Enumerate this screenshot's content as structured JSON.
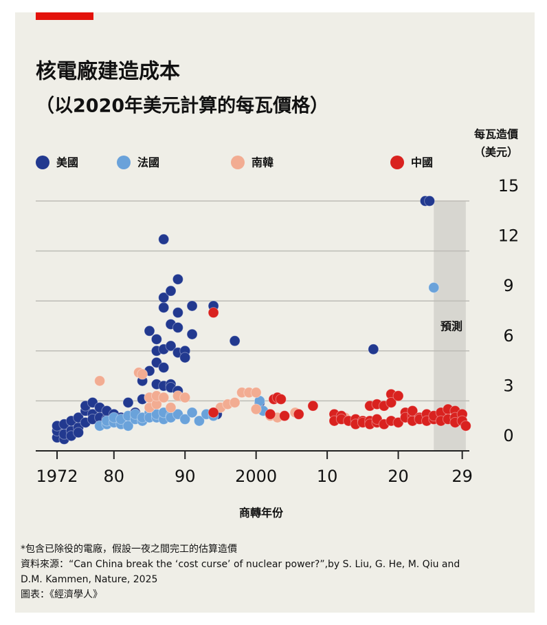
{
  "chart_data": {
    "type": "scatter",
    "title": "核電廠建造成本",
    "subtitle": "（以2020年美元計算的每瓦價格）",
    "y_axis_title": [
      "每瓦造價",
      "（美元）"
    ],
    "x_axis_title": "商轉年份",
    "shade": {
      "label": "預測",
      "x": [
        2025,
        2029.5
      ]
    },
    "xlim": [
      1969,
      2030
    ],
    "xticks": [
      {
        "value": 1972,
        "label": "1972"
      },
      {
        "value": 1980,
        "label": "80"
      },
      {
        "value": 1990,
        "label": "90"
      },
      2000,
      {
        "value": 2010,
        "label": "10"
      },
      {
        "value": 2020,
        "label": "20"
      },
      {
        "value": 2029,
        "label": "29"
      }
    ],
    "ylim": [
      0,
      15
    ],
    "yticks": [
      0,
      3,
      6,
      9,
      12,
      15
    ],
    "grid": true,
    "series": [
      {
        "name": "美國",
        "color": "#22398f",
        "x": [
          1972,
          1972,
          1972,
          1973,
          1973,
          1973,
          1974,
          1974,
          1974,
          1975,
          1975,
          1975,
          1976,
          1976,
          1976,
          1977,
          1977,
          1977,
          1978,
          1978,
          1979,
          1979,
          1980,
          1980,
          1981,
          1982,
          1982,
          1983,
          1984,
          1984,
          1985,
          1985,
          1985,
          1986,
          1986,
          1986,
          1986,
          1987,
          1987,
          1987,
          1987,
          1987,
          1987,
          1988,
          1988,
          1988,
          1988,
          1988,
          1989,
          1989,
          1989,
          1989,
          1989,
          1990,
          1990,
          1991,
          1991,
          1994,
          1994.5,
          1997,
          2000.5,
          2016.5,
          2023.8,
          2024.4
        ],
        "y": [
          0.8,
          1.2,
          1.5,
          0.7,
          1.0,
          1.6,
          1.2,
          1.8,
          0.9,
          1.4,
          2.0,
          1.1,
          2.4,
          1.7,
          2.7,
          2.9,
          2.2,
          1.9,
          2.6,
          2.0,
          1.9,
          2.4,
          1.8,
          2.2,
          2.0,
          2.9,
          2.1,
          2.3,
          3.1,
          4.2,
          4.8,
          3.2,
          7.2,
          5.3,
          4.0,
          6.0,
          6.7,
          12.7,
          8.6,
          5.0,
          3.9,
          9.2,
          6.1,
          9.6,
          7.6,
          6.3,
          4.0,
          3.8,
          10.3,
          8.3,
          7.4,
          5.9,
          3.6,
          6.0,
          5.6,
          8.7,
          7.0,
          8.7,
          2.2,
          6.6,
          2.9,
          6.1,
          15,
          15
        ]
      },
      {
        "name": "法國",
        "color": "#6aa2da",
        "x": [
          1978,
          1979,
          1979,
          1980,
          1980,
          1981,
          1981,
          1982,
          1982,
          1983,
          1983,
          1984,
          1984,
          1985,
          1985,
          1986,
          1986,
          1987,
          1987,
          1988,
          1988,
          1989,
          1990,
          1991,
          1992,
          1993,
          1994,
          2000.5,
          2001,
          2025
        ],
        "y": [
          1.5,
          1.6,
          1.8,
          1.7,
          2.0,
          1.6,
          1.9,
          2.1,
          1.5,
          1.9,
          2.2,
          1.8,
          2.0,
          2.3,
          2.0,
          2.0,
          2.2,
          1.9,
          2.3,
          2.1,
          2.0,
          2.2,
          1.9,
          2.3,
          1.8,
          2.2,
          2.1,
          3.0,
          2.4,
          9.8
        ]
      },
      {
        "name": "南韓",
        "color": "#f2ac92",
        "x": [
          1978,
          1983.5,
          1984,
          1985,
          1985,
          1986,
          1986,
          1987,
          1988,
          1989,
          1990,
          1995,
          1996,
          1997,
          1998,
          1999,
          2000,
          2000,
          2002,
          2003,
          2005.5,
          2012.5,
          2014
        ],
        "y": [
          4.2,
          4.7,
          4.6,
          2.6,
          3.2,
          2.8,
          3.3,
          3.2,
          2.6,
          3.3,
          3.2,
          2.6,
          2.8,
          2.9,
          3.5,
          3.5,
          3.5,
          2.5,
          2.1,
          2.0,
          2.3,
          2.0,
          1.9
        ]
      },
      {
        "name": "中國",
        "color": "#d9221f",
        "x": [
          1994,
          1994,
          2002,
          2002.5,
          2003,
          2003.5,
          2004,
          2006,
          2008,
          2011,
          2011,
          2012,
          2012,
          2013,
          2014,
          2014,
          2015,
          2015,
          2016,
          2016,
          2016,
          2017,
          2017,
          2017,
          2018,
          2018,
          2019,
          2019,
          2019,
          2020,
          2020,
          2021,
          2021,
          2022,
          2022,
          2022,
          2023,
          2023,
          2024,
          2024,
          2025,
          2025,
          2026,
          2026,
          2027,
          2027,
          2028,
          2028,
          2028,
          2029,
          2029,
          2029.5
        ],
        "y": [
          8.3,
          2.3,
          2.2,
          3.1,
          3.2,
          3.1,
          2.1,
          2.2,
          2.7,
          2.2,
          1.8,
          2.1,
          1.9,
          1.8,
          1.9,
          1.6,
          1.8,
          1.7,
          2.7,
          1.8,
          1.6,
          2.8,
          1.7,
          1.9,
          1.6,
          2.7,
          3.4,
          1.8,
          2.9,
          3.3,
          1.7,
          2.3,
          2.0,
          2.1,
          1.8,
          2.4,
          2.0,
          1.9,
          2.2,
          1.8,
          1.9,
          2.1,
          2.3,
          1.8,
          2.5,
          1.9,
          2.4,
          2.0,
          1.7,
          2.2,
          1.8,
          1.5
        ]
      }
    ],
    "notes": [
      "*包含已除役的電廠，假設一夜之間完工的估算造價",
      "資料來源：“Can China break the ‘cost curse’ of nuclear power?”,by S. Liu, G. He, M. Qiu and",
      "D.M. Kammen, Nature, 2025",
      "圖表：《經濟學人》"
    ]
  }
}
